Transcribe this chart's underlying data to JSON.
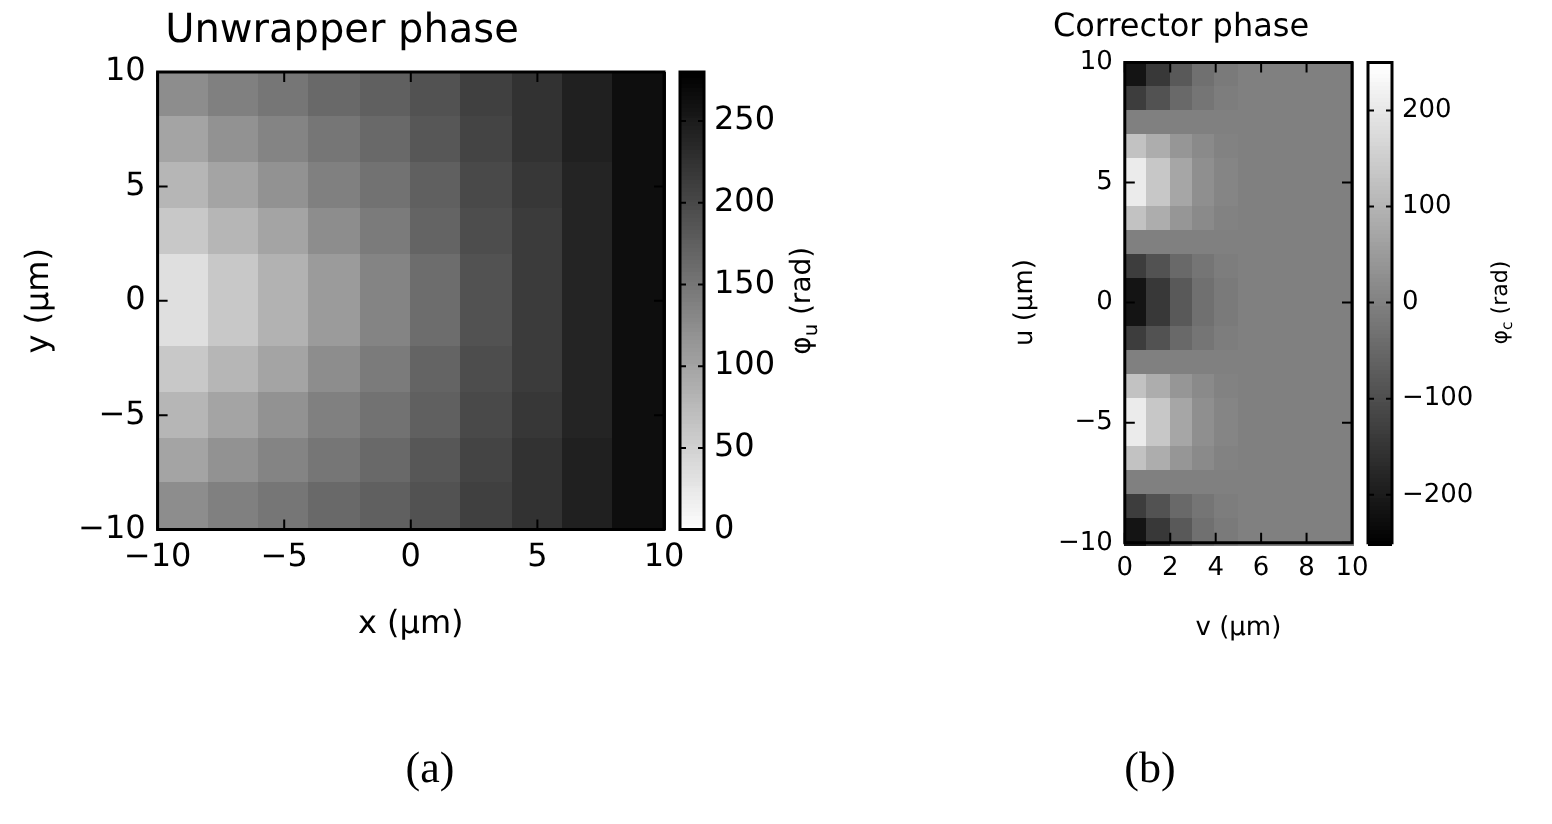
{
  "chart_data": [
    {
      "type": "heatmap",
      "title": "Unwrapper phase",
      "xlabel": "x (μm)",
      "ylabel": "y (μm)",
      "clabel": "φ$_{u}$ (rad)",
      "x": [
        -9,
        -7,
        -5,
        -3,
        -1,
        1,
        3,
        5,
        7,
        9
      ],
      "y": [
        9,
        7,
        5,
        3,
        1,
        -1,
        -3,
        -5,
        -7,
        -9
      ],
      "xlim": [
        -10,
        10
      ],
      "xticks": [
        -10,
        -5,
        0,
        5,
        10
      ],
      "ylim": [
        -10,
        10
      ],
      "yticks": [
        -10,
        -5,
        0,
        5,
        10
      ],
      "colors": [
        "#ffffff",
        "#000000"
      ],
      "clim": [
        0,
        280
      ],
      "cticks": [
        0,
        50,
        100,
        150,
        200,
        250
      ],
      "cells": [
        [
          125,
          140,
          150,
          165,
          175,
          190,
          210,
          225,
          245,
          265
        ],
        [
          100,
          120,
          135,
          150,
          165,
          185,
          205,
          225,
          245,
          265
        ],
        [
          80,
          100,
          120,
          140,
          155,
          175,
          200,
          220,
          240,
          265
        ],
        [
          60,
          80,
          100,
          125,
          145,
          170,
          195,
          215,
          240,
          265
        ],
        [
          35,
          60,
          85,
          110,
          135,
          160,
          190,
          215,
          240,
          265
        ],
        [
          35,
          60,
          85,
          110,
          135,
          160,
          190,
          215,
          240,
          265
        ],
        [
          60,
          80,
          100,
          125,
          145,
          170,
          195,
          215,
          240,
          265
        ],
        [
          80,
          100,
          120,
          140,
          155,
          175,
          200,
          220,
          240,
          265
        ],
        [
          100,
          120,
          135,
          150,
          165,
          185,
          205,
          225,
          245,
          265
        ],
        [
          125,
          140,
          150,
          165,
          175,
          190,
          210,
          225,
          245,
          265
        ]
      ],
      "annotations": [
        "(a)"
      ]
    },
    {
      "type": "heatmap",
      "title": "Corrector phase",
      "xlabel": "v (μm)",
      "ylabel": "u (μm)",
      "clabel": "φ$_{c}$ (rad)",
      "x": [
        0.5,
        1.5,
        2.5,
        3.5,
        4.5,
        5.5,
        6.5,
        7.5,
        8.5,
        9.5
      ],
      "y": [
        9.5,
        8.5,
        7.5,
        6.5,
        5.5,
        4.5,
        3.5,
        2.5,
        1.5,
        0.5,
        -0.5,
        -1.5,
        -2.5,
        -3.5,
        -4.5,
        -5.5,
        -6.5,
        -7.5,
        -8.5,
        -9.5
      ],
      "xlim": [
        0,
        10
      ],
      "xticks": [
        0,
        2,
        4,
        6,
        8,
        10
      ],
      "ylim": [
        -10,
        10
      ],
      "yticks": [
        -10,
        -5,
        0,
        5,
        10
      ],
      "colors": [
        "#000000",
        "#ffffff"
      ],
      "clim": [
        -250,
        250
      ],
      "cticks": [
        -200,
        -100,
        0,
        100,
        200
      ],
      "cells": [
        [
          -210,
          -140,
          -75,
          -30,
          -10,
          0,
          0,
          0,
          0,
          0
        ],
        [
          -130,
          -90,
          -45,
          -20,
          -5,
          0,
          0,
          0,
          0,
          0
        ],
        [
          0,
          0,
          0,
          0,
          0,
          0,
          0,
          0,
          0,
          0
        ],
        [
          130,
          90,
          45,
          20,
          5,
          0,
          0,
          0,
          0,
          0
        ],
        [
          210,
          140,
          75,
          30,
          10,
          0,
          0,
          0,
          0,
          0
        ],
        [
          210,
          140,
          75,
          30,
          10,
          0,
          0,
          0,
          0,
          0
        ],
        [
          130,
          90,
          45,
          20,
          5,
          0,
          0,
          0,
          0,
          0
        ],
        [
          0,
          0,
          0,
          0,
          0,
          0,
          0,
          0,
          0,
          0
        ],
        [
          -130,
          -90,
          -45,
          -20,
          -5,
          0,
          0,
          0,
          0,
          0
        ],
        [
          -210,
          -140,
          -75,
          -30,
          -10,
          0,
          0,
          0,
          0,
          0
        ],
        [
          -210,
          -140,
          -75,
          -30,
          -10,
          0,
          0,
          0,
          0,
          0
        ],
        [
          -130,
          -90,
          -45,
          -20,
          -5,
          0,
          0,
          0,
          0,
          0
        ],
        [
          0,
          0,
          0,
          0,
          0,
          0,
          0,
          0,
          0,
          0
        ],
        [
          130,
          90,
          45,
          20,
          5,
          0,
          0,
          0,
          0,
          0
        ],
        [
          210,
          140,
          75,
          30,
          10,
          0,
          0,
          0,
          0,
          0
        ],
        [
          210,
          140,
          75,
          30,
          10,
          0,
          0,
          0,
          0,
          0
        ],
        [
          130,
          90,
          45,
          20,
          5,
          0,
          0,
          0,
          0,
          0
        ],
        [
          0,
          0,
          0,
          0,
          0,
          0,
          0,
          0,
          0,
          0
        ],
        [
          -130,
          -90,
          -45,
          -20,
          -5,
          0,
          0,
          0,
          0,
          0
        ],
        [
          -210,
          -140,
          -75,
          -30,
          -10,
          0,
          0,
          0,
          0,
          0
        ]
      ],
      "annotations": [
        "(b)"
      ]
    }
  ]
}
